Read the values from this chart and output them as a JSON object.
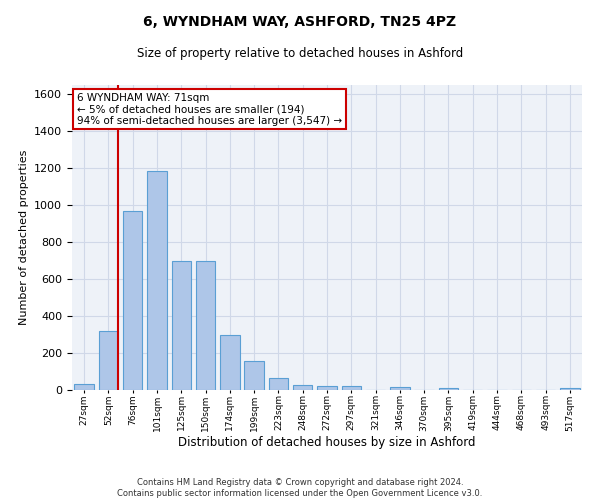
{
  "title": "6, WYNDHAM WAY, ASHFORD, TN25 4PZ",
  "subtitle": "Size of property relative to detached houses in Ashford",
  "xlabel": "Distribution of detached houses by size in Ashford",
  "ylabel": "Number of detached properties",
  "footer_line1": "Contains HM Land Registry data © Crown copyright and database right 2024.",
  "footer_line2": "Contains public sector information licensed under the Open Government Licence v3.0.",
  "bar_labels": [
    "27sqm",
    "52sqm",
    "76sqm",
    "101sqm",
    "125sqm",
    "150sqm",
    "174sqm",
    "199sqm",
    "223sqm",
    "248sqm",
    "272sqm",
    "297sqm",
    "321sqm",
    "346sqm",
    "370sqm",
    "395sqm",
    "419sqm",
    "444sqm",
    "468sqm",
    "493sqm",
    "517sqm"
  ],
  "bar_values": [
    30,
    320,
    970,
    1185,
    700,
    700,
    300,
    155,
    65,
    25,
    20,
    20,
    0,
    15,
    0,
    12,
    0,
    0,
    0,
    0,
    12
  ],
  "bar_color": "#aec6e8",
  "bar_edge_color": "#5a9fd4",
  "grid_color": "#d0d8e8",
  "background_color": "#eef2f8",
  "annotation_text": "6 WYNDHAM WAY: 71sqm\n← 5% of detached houses are smaller (194)\n94% of semi-detached houses are larger (3,547) →",
  "annotation_box_color": "#ffffff",
  "annotation_border_color": "#cc0000",
  "vline_x_idx": 1,
  "vline_color": "#cc0000",
  "ylim": [
    0,
    1650
  ],
  "yticks": [
    0,
    200,
    400,
    600,
    800,
    1000,
    1200,
    1400,
    1600
  ]
}
